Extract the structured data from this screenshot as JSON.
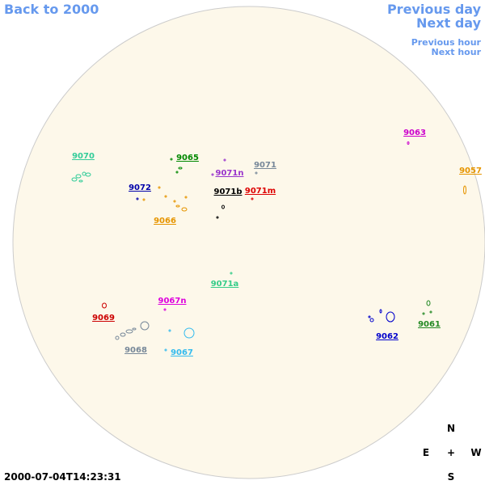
{
  "navigation": {
    "back": "Back to 2000",
    "previous_day": "Previous day",
    "next_day": "Next day",
    "previous_hour": "Previous hour",
    "next_hour": "Next hour"
  },
  "regions": [
    {
      "label": "9070",
      "color": "#33cc99"
    },
    {
      "label": "9065",
      "color": "#008800"
    },
    {
      "label": "9063",
      "color": "#cc00cc"
    },
    {
      "label": "9057",
      "color": "#e69500"
    },
    {
      "label": "9071",
      "color": "#778899"
    },
    {
      "label": "9071n",
      "color": "#9933cc"
    },
    {
      "label": "9072",
      "color": "#0000aa"
    },
    {
      "label": "9071b",
      "color": "#000000"
    },
    {
      "label": "9071m",
      "color": "#dd0000"
    },
    {
      "label": "9066",
      "color": "#e69500"
    },
    {
      "label": "9071a",
      "color": "#33cc88"
    },
    {
      "label": "9067n",
      "color": "#dd00dd"
    },
    {
      "label": "9069",
      "color": "#cc0000"
    },
    {
      "label": "9068",
      "color": "#778899"
    },
    {
      "label": "9067",
      "color": "#33bbee"
    },
    {
      "label": "9062",
      "color": "#0000cc"
    },
    {
      "label": "9061",
      "color": "#228822"
    }
  ],
  "compass": {
    "north": "N",
    "east": "E",
    "center": "+",
    "west": "W",
    "south": "S"
  },
  "timestamp": "2000-07-04T14:23:31"
}
